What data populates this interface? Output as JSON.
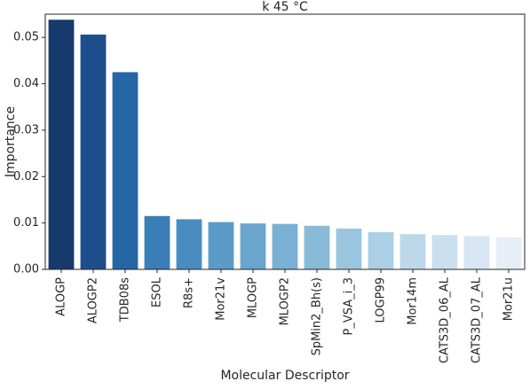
{
  "chart_data": {
    "type": "bar",
    "title": "k 45 °C",
    "xlabel": "Molecular Descriptor",
    "ylabel": "Importance",
    "ylim": [
      0,
      0.055
    ],
    "yticks": [
      "0.00",
      "0.01",
      "0.02",
      "0.03",
      "0.04",
      "0.05"
    ],
    "ytick_values": [
      0,
      0.01,
      0.02,
      0.03,
      0.04,
      0.05
    ],
    "grid": false,
    "categories": [
      "ALOGP",
      "ALOGP2",
      "TDB08s",
      "ESOL",
      "R8s+",
      "Mor21v",
      "MLOGP",
      "MLOGP2",
      "SpMin2_Bh(s)",
      "P_VSA_i_3",
      "LOGP99",
      "Mor14m",
      "CATS3D_06_AL",
      "CATS3D_07_AL",
      "Mor21u"
    ],
    "values": [
      0.0538,
      0.0506,
      0.0425,
      0.0115,
      0.0108,
      0.0102,
      0.0099,
      0.0098,
      0.0094,
      0.0088,
      0.008,
      0.0076,
      0.0074,
      0.0072,
      0.0069
    ],
    "colors": [
      "#17396b",
      "#1d4d8a",
      "#2766a5",
      "#3a7eb8",
      "#4b8cc0",
      "#5b9bc8",
      "#6aa5cd",
      "#79b0d3",
      "#89bad8",
      "#9ac5de",
      "#abcfe4",
      "#bcd8ea",
      "#cbe0ef",
      "#d8e6f3",
      "#e6eff8"
    ]
  }
}
